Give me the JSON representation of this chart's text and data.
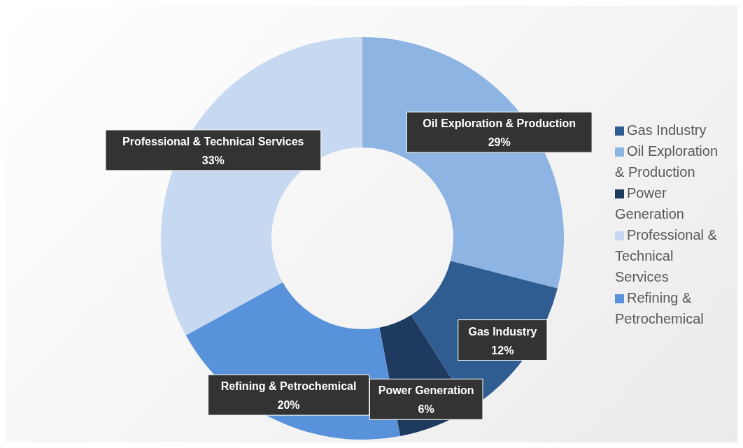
{
  "chart_data": {
    "type": "donut",
    "categories": [
      "Oil Exploration & Production",
      "Gas Industry",
      "Power Generation",
      "Refining & Petrochemical",
      "Professional & Technical Services"
    ],
    "values": [
      29,
      12,
      6,
      20,
      33
    ],
    "value_labels": [
      "29%",
      "12%",
      "6%",
      "20%",
      "33%"
    ],
    "colors": [
      "#8db4e2",
      "#2f5d92",
      "#1f3a5f",
      "#5892da",
      "#c6d9f1"
    ],
    "legend": "right"
  }
}
